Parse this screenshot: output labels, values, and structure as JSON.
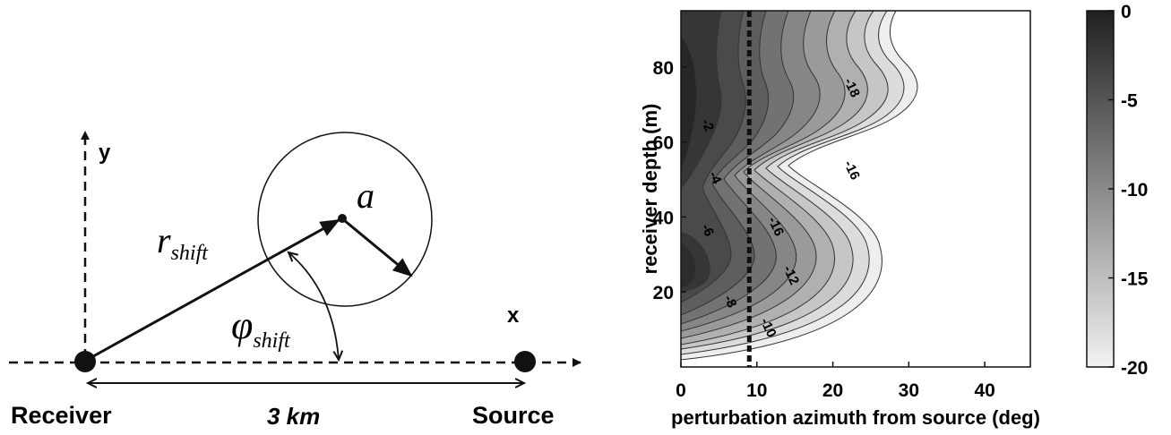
{
  "diagram": {
    "axis_x": "x",
    "axis_y": "y",
    "receiver_label": "Receiver",
    "source_label": "Source",
    "distance_label": "3 km",
    "r_symbol": "r",
    "r_sub": "shift",
    "phi_symbol": "φ",
    "phi_sub": "shift",
    "radius_label": "a"
  },
  "chart_data": {
    "type": "contour",
    "xlabel": "perturbation azimuth from source (deg)",
    "ylabel": "receiver depth (m)",
    "xlim": [
      0,
      46
    ],
    "ylim": [
      0,
      95
    ],
    "xticks": [
      0,
      10,
      20,
      30,
      40
    ],
    "yticks": [
      20,
      40,
      60,
      80
    ],
    "colorbar": {
      "ticks": [
        0,
        -5,
        -10,
        -15,
        -20
      ],
      "range": [
        -20,
        0
      ],
      "colormap": "gray"
    },
    "contour_labels": [
      {
        "text": "-2",
        "x": 3,
        "y": 64
      },
      {
        "text": "-4",
        "x": 4,
        "y": 50
      },
      {
        "text": "-6",
        "x": 3,
        "y": 36
      },
      {
        "text": "-8",
        "x": 6,
        "y": 17
      },
      {
        "text": "-10",
        "x": 11,
        "y": 10
      },
      {
        "text": "-12",
        "x": 14,
        "y": 24
      },
      {
        "text": "-16",
        "x": 12,
        "y": 37
      },
      {
        "text": "-16",
        "x": 22,
        "y": 52
      },
      {
        "text": "-18",
        "x": 22,
        "y": 74
      }
    ],
    "dashed_line_x": 9
  }
}
